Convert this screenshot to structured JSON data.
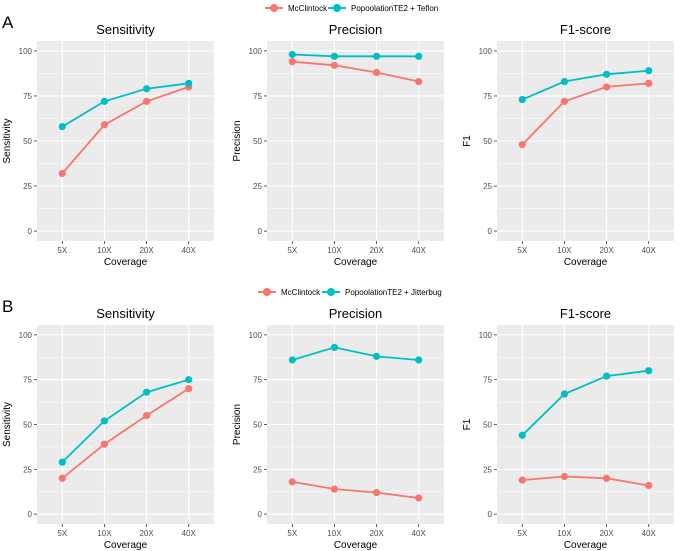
{
  "colors": {
    "mcclintock": "#F8766D",
    "other": "#00BFC4",
    "panel_bg": "#EBEBEB",
    "grid": "#FFFFFF"
  },
  "sections": [
    {
      "label": "A",
      "legend": [
        "McClintock",
        "PopoolationTE2 + Teflon"
      ],
      "xlabel": "Coverage",
      "chart_data": [
        {
          "type": "line",
          "title": "Sensitivity",
          "ylabel": "Sensitivity",
          "categories": [
            "5X",
            "10X",
            "20X",
            "40X"
          ],
          "ylim": [
            0,
            100
          ],
          "yticks": [
            0,
            25,
            50,
            75,
            100
          ],
          "series": [
            {
              "name": "McClintock",
              "values": [
                32,
                59,
                72,
                80
              ]
            },
            {
              "name": "PopoolationTE2 + Teflon",
              "values": [
                58,
                72,
                79,
                82
              ]
            }
          ]
        },
        {
          "type": "line",
          "title": "Precision",
          "ylabel": "Precision",
          "categories": [
            "5X",
            "10X",
            "20X",
            "40X"
          ],
          "ylim": [
            0,
            100
          ],
          "yticks": [
            0,
            25,
            50,
            75,
            100
          ],
          "series": [
            {
              "name": "McClintock",
              "values": [
                94,
                92,
                88,
                83
              ]
            },
            {
              "name": "PopoolationTE2 + Teflon",
              "values": [
                98,
                97,
                97,
                97
              ]
            }
          ]
        },
        {
          "type": "line",
          "title": "F1-score",
          "ylabel": "F1",
          "categories": [
            "5X",
            "10X",
            "20X",
            "40X"
          ],
          "ylim": [
            0,
            100
          ],
          "yticks": [
            0,
            25,
            50,
            75,
            100
          ],
          "series": [
            {
              "name": "McClintock",
              "values": [
                48,
                72,
                80,
                82
              ]
            },
            {
              "name": "PopoolationTE2 + Teflon",
              "values": [
                73,
                83,
                87,
                89
              ]
            }
          ]
        }
      ]
    },
    {
      "label": "B",
      "legend": [
        "McClintock",
        "PopoolationTE2 + Jitterbug"
      ],
      "xlabel": "Coverage",
      "chart_data": [
        {
          "type": "line",
          "title": "Sensitivity",
          "ylabel": "Sensitivity",
          "categories": [
            "5X",
            "10X",
            "20X",
            "40X"
          ],
          "ylim": [
            0,
            100
          ],
          "yticks": [
            0,
            25,
            50,
            75,
            100
          ],
          "series": [
            {
              "name": "McClintock",
              "values": [
                20,
                39,
                55,
                70
              ]
            },
            {
              "name": "PopoolationTE2 + Jitterbug",
              "values": [
                29,
                52,
                68,
                75
              ]
            }
          ]
        },
        {
          "type": "line",
          "title": "Precision",
          "ylabel": "Precision",
          "categories": [
            "5X",
            "10X",
            "20X",
            "40X"
          ],
          "ylim": [
            0,
            100
          ],
          "yticks": [
            0,
            25,
            50,
            75,
            100
          ],
          "series": [
            {
              "name": "McClintock",
              "values": [
                18,
                14,
                12,
                9
              ]
            },
            {
              "name": "PopoolationTE2 + Jitterbug",
              "values": [
                86,
                93,
                88,
                86
              ]
            }
          ]
        },
        {
          "type": "line",
          "title": "F1-score",
          "ylabel": "F1",
          "categories": [
            "5X",
            "10X",
            "20X",
            "40X"
          ],
          "ylim": [
            0,
            100
          ],
          "yticks": [
            0,
            25,
            50,
            75,
            100
          ],
          "series": [
            {
              "name": "McClintock",
              "values": [
                19,
                21,
                20,
                16
              ]
            },
            {
              "name": "PopoolationTE2 + Jitterbug",
              "values": [
                44,
                67,
                77,
                80
              ]
            }
          ]
        }
      ]
    }
  ]
}
